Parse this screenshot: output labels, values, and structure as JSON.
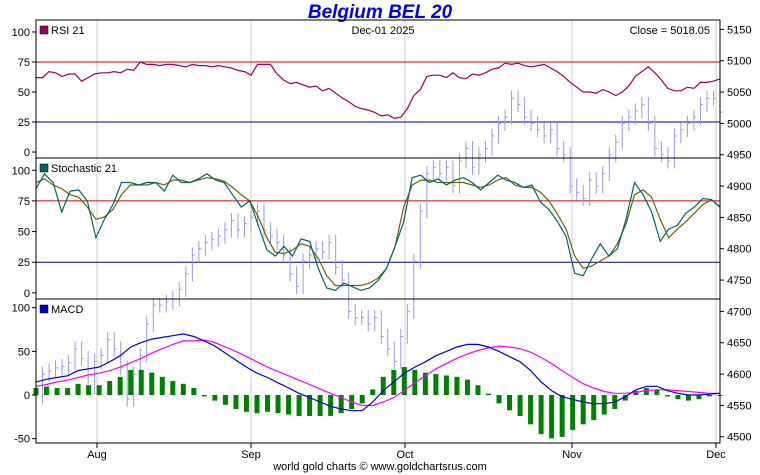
{
  "chart_data": {
    "type": "line",
    "title": "Belgium BEL 20",
    "date_label": "Dec-01  2025",
    "close_label": "Close = 5018.05",
    "footer": "world gold charts © www.goldchartsrus.com",
    "x_month_labels": [
      "Aug",
      "Sep",
      "Oct",
      "Nov",
      "Dec"
    ],
    "price_axis": {
      "ticks": [
        5150,
        5100,
        5050,
        5000,
        4950,
        4900,
        4850,
        4800,
        4750,
        4700,
        4650,
        4600,
        4550,
        4500
      ],
      "ylim": [
        4490,
        5165
      ]
    },
    "panels": [
      {
        "name": "RSI 21",
        "ticks": [
          100,
          75,
          50,
          25,
          0
        ],
        "ylim": [
          -5,
          110
        ],
        "ref_lines": [
          75,
          25
        ]
      },
      {
        "name": "Stochastic 21",
        "ticks": [
          100,
          75,
          50,
          25,
          0
        ],
        "ylim": [
          -5,
          110
        ],
        "ref_lines": [
          75,
          25
        ]
      },
      {
        "name": "MACD",
        "ticks": [
          100,
          50,
          0,
          -50
        ],
        "ylim": [
          -55,
          110
        ]
      }
    ],
    "colors": {
      "rsi": "#990066",
      "stoch_k": "#006666",
      "stoch_d": "#666600",
      "macd": "#0000cc",
      "signal": "#ff00ff",
      "histogram": "#008000",
      "ref_red": "#cc0000",
      "ref_blue": "#000080",
      "price_bars": "#9999ee"
    },
    "price_closes": [
      4565,
      4600,
      4605,
      4610,
      4612,
      4618,
      4640,
      4625,
      4580,
      4620,
      4630,
      4655,
      4640,
      4610,
      4560,
      4600,
      4630,
      4680,
      4710,
      4710,
      4715,
      4720,
      4735,
      4760,
      4790,
      4800,
      4810,
      4815,
      4820,
      4830,
      4845,
      4830,
      4840,
      4850,
      4860,
      4830,
      4820,
      4810,
      4790,
      4760,
      4740,
      4780,
      4790,
      4800,
      4795,
      4810,
      4770,
      4750,
      4700,
      4690,
      4690,
      4680,
      4690,
      4660,
      4640,
      4620,
      4660,
      4700,
      4780,
      4860,
      4920,
      4930,
      4920,
      4930,
      4900,
      4940,
      4960,
      4930,
      4950,
      4960,
      4980,
      5000,
      5010,
      5040,
      5030,
      5010,
      5000,
      4990,
      4980,
      4990,
      4960,
      4950,
      4900,
      4890,
      4880,
      4910,
      4900,
      4920,
      4950,
      4970,
      5000,
      5010,
      5020,
      5030,
      5000,
      4960,
      4950,
      4940,
      4980,
      4990,
      5000,
      5010,
      5030,
      5040,
      5040,
      5018
    ],
    "rsi_values": [
      62,
      62,
      67,
      66,
      63,
      65,
      65,
      59,
      62,
      65,
      66,
      66,
      67,
      66,
      69,
      68,
      75,
      73,
      73,
      72,
      73,
      73,
      72,
      71,
      73,
      72,
      72,
      71,
      72,
      71,
      70,
      68,
      67,
      64,
      73,
      73,
      73,
      65,
      60,
      57,
      58,
      56,
      54,
      55,
      51,
      53,
      49,
      45,
      42,
      38,
      36,
      35,
      33,
      30,
      31,
      28,
      29,
      36,
      47,
      52,
      63,
      64,
      64,
      62,
      66,
      62,
      61,
      65,
      64,
      66,
      69,
      70,
      74,
      73,
      74,
      72,
      71,
      72,
      73,
      70,
      67,
      63,
      58,
      54,
      50,
      50,
      49,
      52,
      50,
      47,
      50,
      55,
      63,
      67,
      71,
      66,
      60,
      53,
      51,
      51,
      54,
      53,
      58,
      58,
      59,
      61
    ],
    "stoch_k": [
      85,
      97,
      90,
      66,
      83,
      84,
      75,
      45,
      60,
      72,
      90,
      90,
      88,
      90,
      90,
      83,
      96,
      90,
      90,
      93,
      97,
      92,
      90,
      80,
      70,
      75,
      55,
      35,
      30,
      38,
      30,
      44,
      42,
      20,
      4,
      2,
      8,
      5,
      2,
      4,
      10,
      20,
      38,
      58,
      94,
      96,
      90,
      93,
      88,
      92,
      94,
      90,
      84,
      90,
      96,
      92,
      90,
      86,
      88,
      74,
      68,
      58,
      46,
      16,
      14,
      28,
      40,
      30,
      36,
      60,
      90,
      80,
      66,
      42,
      52,
      55,
      65,
      70,
      77,
      76,
      70
    ],
    "stoch_d": [
      90,
      93,
      88,
      85,
      80,
      78,
      70,
      60,
      62,
      68,
      80,
      88,
      88,
      88,
      90,
      88,
      92,
      92,
      90,
      92,
      94,
      93,
      91,
      86,
      80,
      75,
      62,
      45,
      33,
      32,
      35,
      40,
      38,
      28,
      14,
      6,
      6,
      6,
      6,
      8,
      12,
      20,
      38,
      70,
      88,
      92,
      92,
      90,
      90,
      90,
      90,
      88,
      86,
      88,
      92,
      94,
      88,
      86,
      86,
      82,
      75,
      64,
      52,
      30,
      20,
      22,
      26,
      30,
      40,
      56,
      80,
      84,
      78,
      60,
      45,
      52,
      58,
      65,
      72,
      76,
      70
    ],
    "macd_values": [
      15,
      18,
      20,
      22,
      28,
      30,
      32,
      38,
      45,
      55,
      60,
      64,
      66,
      68,
      70,
      67,
      62,
      56,
      48,
      40,
      32,
      25,
      20,
      14,
      8,
      2,
      -3,
      -8,
      -13,
      -16,
      -18,
      -18,
      -8,
      5,
      15,
      25,
      32,
      38,
      45,
      50,
      55,
      58,
      58,
      55,
      50,
      44,
      38,
      28,
      15,
      5,
      -2,
      -5,
      -8,
      -10,
      -10,
      -8,
      -2,
      6,
      10,
      10,
      5,
      2,
      0,
      0,
      1,
      2
    ],
    "signal_values": [
      10,
      12,
      15,
      17,
      20,
      23,
      25,
      28,
      32,
      37,
      42,
      48,
      53,
      58,
      62,
      62,
      63,
      60,
      55,
      50,
      44,
      38,
      32,
      27,
      22,
      17,
      12,
      7,
      2,
      -3,
      -8,
      -12,
      -12,
      -8,
      -3,
      5,
      14,
      22,
      30,
      36,
      42,
      47,
      51,
      54,
      56,
      55,
      53,
      49,
      43,
      36,
      28,
      20,
      13,
      8,
      4,
      2,
      2,
      3,
      5,
      6,
      6,
      5,
      4,
      3,
      2,
      2
    ]
  }
}
